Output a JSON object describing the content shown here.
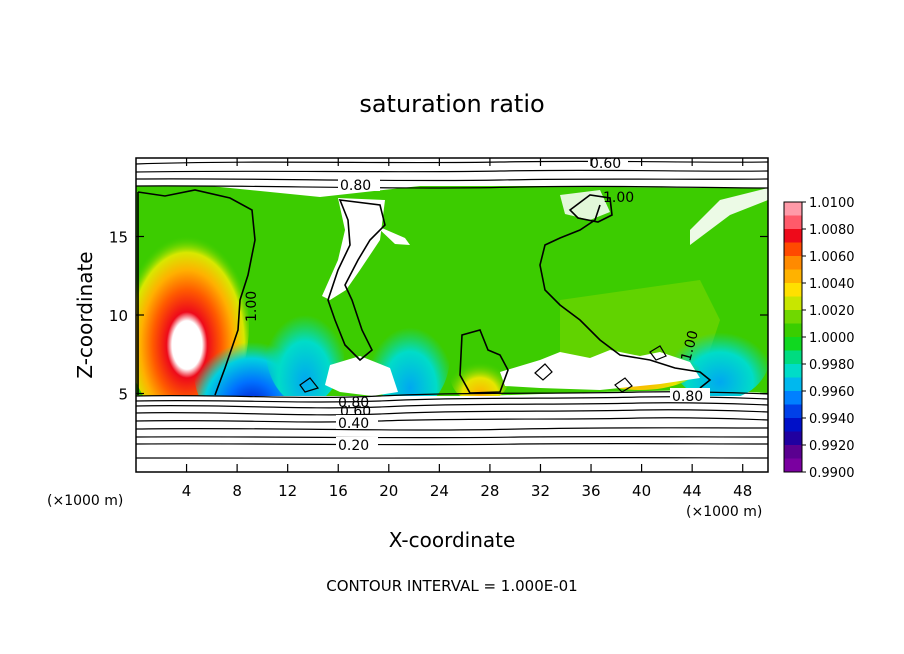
{
  "chart_data": {
    "type": "heatmap",
    "title": "saturation ratio",
    "xlabel": "X-coordinate",
    "ylabel": "Z-coordinate",
    "x_unit_left": "(×1000 m)",
    "x_unit_right": "(×1000 m)",
    "footer": "CONTOUR INTERVAL = 1.000E-01",
    "xlim": [
      0,
      50
    ],
    "ylim": [
      0,
      20
    ],
    "x_ticks": [
      4,
      8,
      12,
      16,
      20,
      24,
      28,
      32,
      36,
      40,
      44,
      48
    ],
    "y_ticks": [
      5,
      10,
      15
    ],
    "colorbar": {
      "labels": [
        "1.0100",
        "1.0080",
        "1.0060",
        "1.0040",
        "1.0020",
        "1.0000",
        "0.9980",
        "0.9960",
        "0.9940",
        "0.9920",
        "0.9900"
      ],
      "colors": [
        "#ff9aa8",
        "#ff5a6a",
        "#ee0a1a",
        "#ff4a00",
        "#ff8a00",
        "#ffb200",
        "#ffe000",
        "#c8e600",
        "#70d800",
        "#3ace00",
        "#10d820",
        "#00dc80",
        "#00dcc8",
        "#00b8ee",
        "#0080ff",
        "#0040e8",
        "#0010c8",
        "#2000a0",
        "#5a0090",
        "#7a00a0"
      ]
    },
    "contours": [
      {
        "label": "0.60"
      },
      {
        "label": "0.80"
      },
      {
        "label": "1.00"
      },
      {
        "label": "1.00"
      },
      {
        "label": "1.00"
      },
      {
        "label": "0.80"
      },
      {
        "label": "0.80"
      },
      {
        "label": "0.60"
      },
      {
        "label": "0.40"
      },
      {
        "label": "0.20"
      }
    ]
  }
}
